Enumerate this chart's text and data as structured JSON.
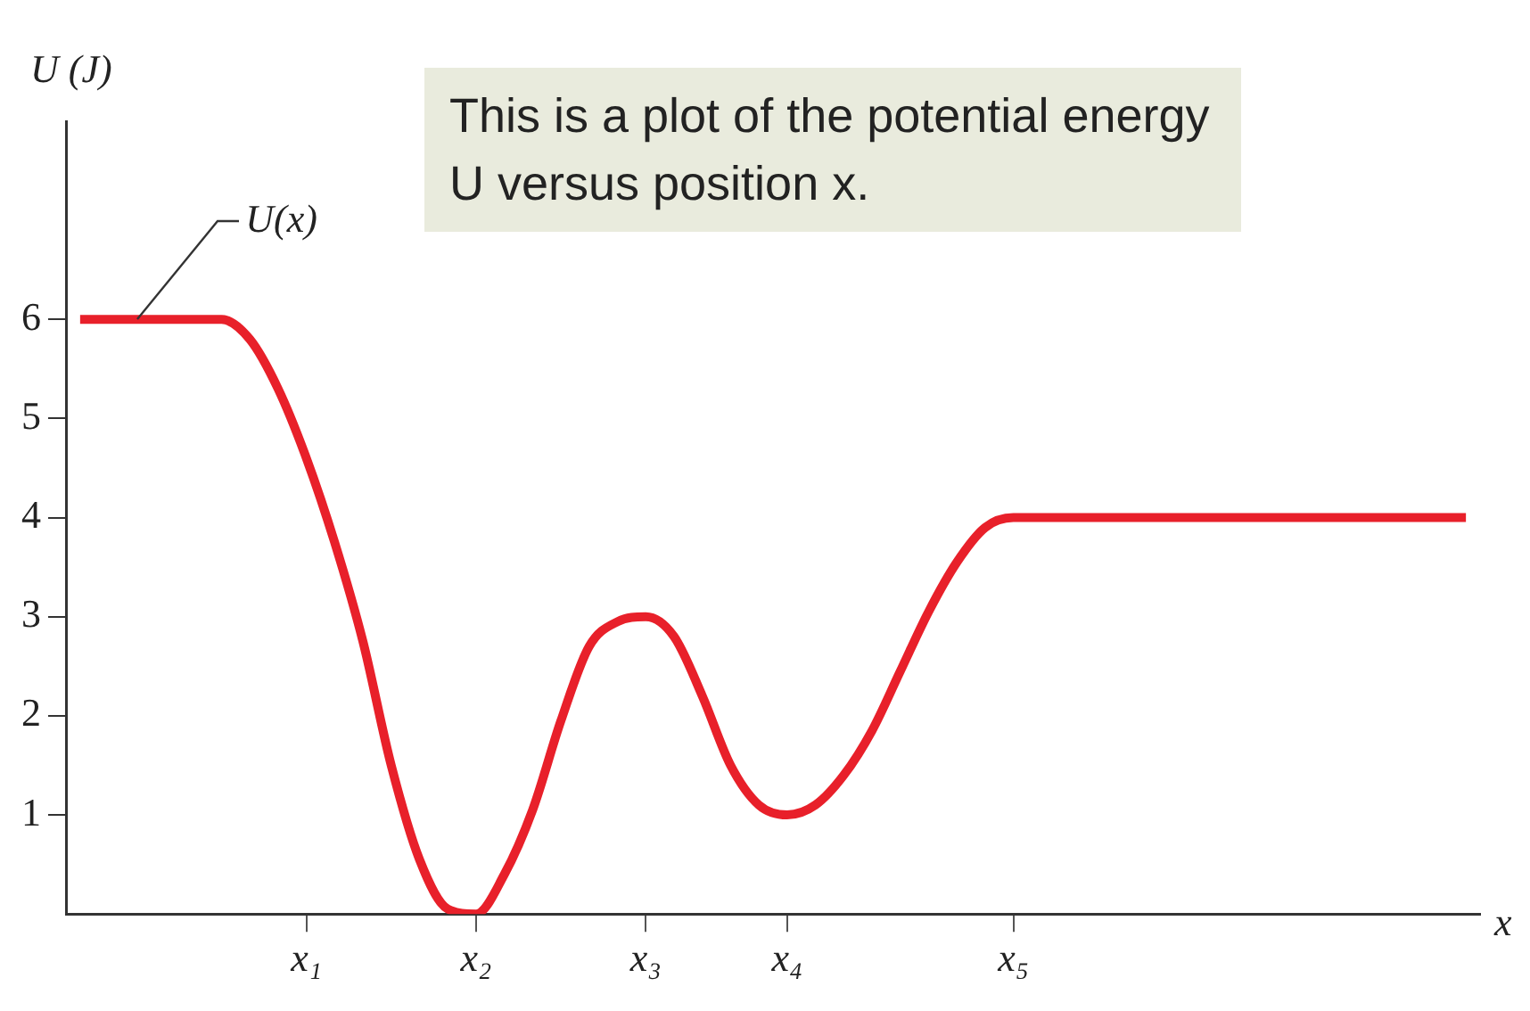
{
  "chart_data": {
    "type": "line",
    "ylabel": "U (J)",
    "xlabel": "x",
    "categories": [
      null,
      null,
      null,
      null,
      null,
      null,
      null,
      null,
      "x₁",
      null,
      null,
      null,
      null,
      null,
      "x₂",
      null,
      null,
      null,
      null,
      null,
      "x₃",
      null,
      null,
      null,
      null,
      "x₄",
      null,
      null,
      null,
      null,
      null,
      null,
      null,
      "x₅",
      null,
      null,
      null,
      null,
      null,
      null,
      null,
      null,
      null,
      null,
      null,
      null,
      null,
      null,
      null,
      null
    ],
    "series": [
      {
        "name": "U(x)",
        "color": "#e8202a",
        "values": [
          6,
          6,
          6,
          6,
          6,
          6,
          5.8,
          5.3,
          4.6,
          3.75,
          2.75,
          1.5,
          0.55,
          0.05,
          0,
          0.4,
          1.05,
          1.95,
          2.7,
          2.95,
          3,
          2.8,
          2.2,
          1.5,
          1.1,
          1,
          1.1,
          1.4,
          1.85,
          2.45,
          3.05,
          3.55,
          3.9,
          4,
          4,
          4,
          4,
          4,
          4,
          4,
          4,
          4,
          4,
          4,
          4,
          4,
          4,
          4,
          4,
          4
        ]
      }
    ],
    "ylim": [
      0,
      8
    ],
    "yticks": [
      1,
      2,
      3,
      4,
      5,
      6
    ],
    "grid": false,
    "legend": false,
    "marker": "none",
    "line_style": "solid",
    "annotations": [
      "This is a plot of the potential energy U versus position x."
    ]
  }
}
